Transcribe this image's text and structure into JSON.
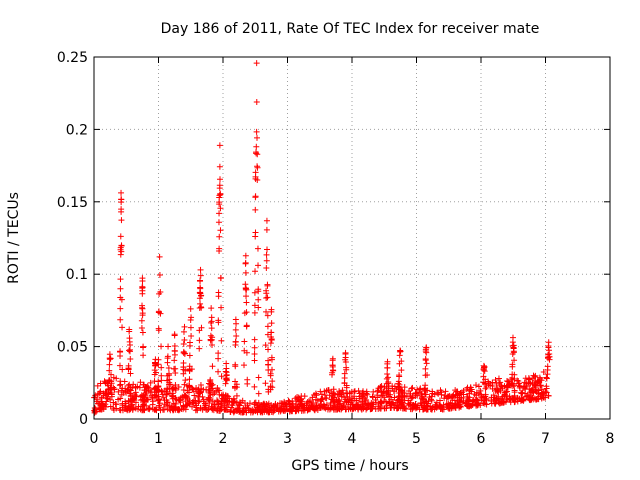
{
  "chart_data": {
    "type": "scatter",
    "title": "Day 186 of 2011, Rate Of TEC Index for receiver mate",
    "xlabel": "GPS time / hours",
    "ylabel": "ROTI / TECUs",
    "xlim": [
      0,
      8
    ],
    "ylim": [
      0,
      0.25
    ],
    "x_ticks": [
      "0",
      "1",
      "2",
      "3",
      "4",
      "5",
      "6",
      "7",
      "8"
    ],
    "y_ticks": [
      "0",
      "0.05",
      "0.1",
      "0.15",
      "0.2",
      "0.25"
    ],
    "grid": true,
    "marker": "plus",
    "color": "#ff0000",
    "series": [
      {
        "name": "ROTI",
        "band": [
          [
            0.0,
            0.013,
            0.035
          ],
          [
            0.2,
            0.012,
            0.03
          ],
          [
            0.4,
            0.012,
            0.028
          ],
          [
            0.6,
            0.012,
            0.026
          ],
          [
            0.8,
            0.012,
            0.026
          ],
          [
            1.0,
            0.012,
            0.025
          ],
          [
            1.2,
            0.012,
            0.024
          ],
          [
            1.4,
            0.012,
            0.024
          ],
          [
            1.6,
            0.012,
            0.024
          ],
          [
            1.8,
            0.012,
            0.026
          ],
          [
            2.0,
            0.01,
            0.018
          ],
          [
            2.2,
            0.009,
            0.014
          ],
          [
            2.4,
            0.009,
            0.012
          ],
          [
            2.6,
            0.009,
            0.011
          ],
          [
            2.8,
            0.009,
            0.011
          ],
          [
            3.0,
            0.01,
            0.013
          ],
          [
            3.2,
            0.011,
            0.016
          ],
          [
            3.4,
            0.012,
            0.018
          ],
          [
            3.6,
            0.013,
            0.02
          ],
          [
            3.8,
            0.013,
            0.02
          ],
          [
            4.0,
            0.013,
            0.02
          ],
          [
            4.2,
            0.013,
            0.02
          ],
          [
            4.4,
            0.014,
            0.022
          ],
          [
            4.6,
            0.015,
            0.025
          ],
          [
            4.8,
            0.014,
            0.024
          ],
          [
            5.0,
            0.013,
            0.022
          ],
          [
            5.2,
            0.013,
            0.02
          ],
          [
            5.4,
            0.013,
            0.02
          ],
          [
            5.6,
            0.015,
            0.02
          ],
          [
            5.8,
            0.017,
            0.022
          ],
          [
            6.0,
            0.019,
            0.025
          ],
          [
            6.2,
            0.021,
            0.028
          ],
          [
            6.4,
            0.022,
            0.028
          ],
          [
            6.6,
            0.024,
            0.028
          ],
          [
            6.8,
            0.026,
            0.03
          ],
          [
            7.05,
            0.03,
            0.035
          ]
        ],
        "arcs": [
          [
            0.02,
            0.1,
            0.003
          ],
          [
            0.15,
            0.085,
            0.008
          ],
          [
            0.25,
            0.06,
            0.05
          ],
          [
            0.42,
            0.04,
            0.163
          ],
          [
            0.55,
            0.045,
            0.07
          ],
          [
            0.75,
            0.035,
            0.1
          ],
          [
            0.95,
            0.04,
            0.045
          ],
          [
            1.02,
            0.055,
            0.118
          ],
          [
            1.15,
            0.045,
            0.055
          ],
          [
            1.25,
            0.03,
            0.06
          ],
          [
            1.4,
            0.04,
            0.07
          ],
          [
            1.5,
            0.05,
            0.08
          ],
          [
            1.65,
            0.055,
            0.112
          ],
          [
            1.82,
            0.045,
            0.085
          ],
          [
            1.95,
            0.06,
            0.192
          ],
          [
            2.05,
            0.03,
            0.045
          ],
          [
            2.2,
            0.035,
            0.07
          ],
          [
            2.35,
            0.06,
            0.12
          ],
          [
            2.52,
            0.07,
            0.25
          ],
          [
            2.68,
            0.05,
            0.14
          ],
          [
            2.75,
            0.03,
            0.08
          ],
          [
            3.7,
            0.04,
            0.045
          ],
          [
            3.9,
            0.045,
            0.048
          ],
          [
            4.55,
            0.035,
            0.04
          ],
          [
            4.75,
            0.06,
            0.055
          ],
          [
            5.15,
            0.04,
            0.055
          ],
          [
            6.05,
            0.04,
            0.042
          ],
          [
            6.5,
            0.04,
            0.063
          ],
          [
            7.05,
            0.04,
            0.055
          ]
        ]
      }
    ]
  }
}
